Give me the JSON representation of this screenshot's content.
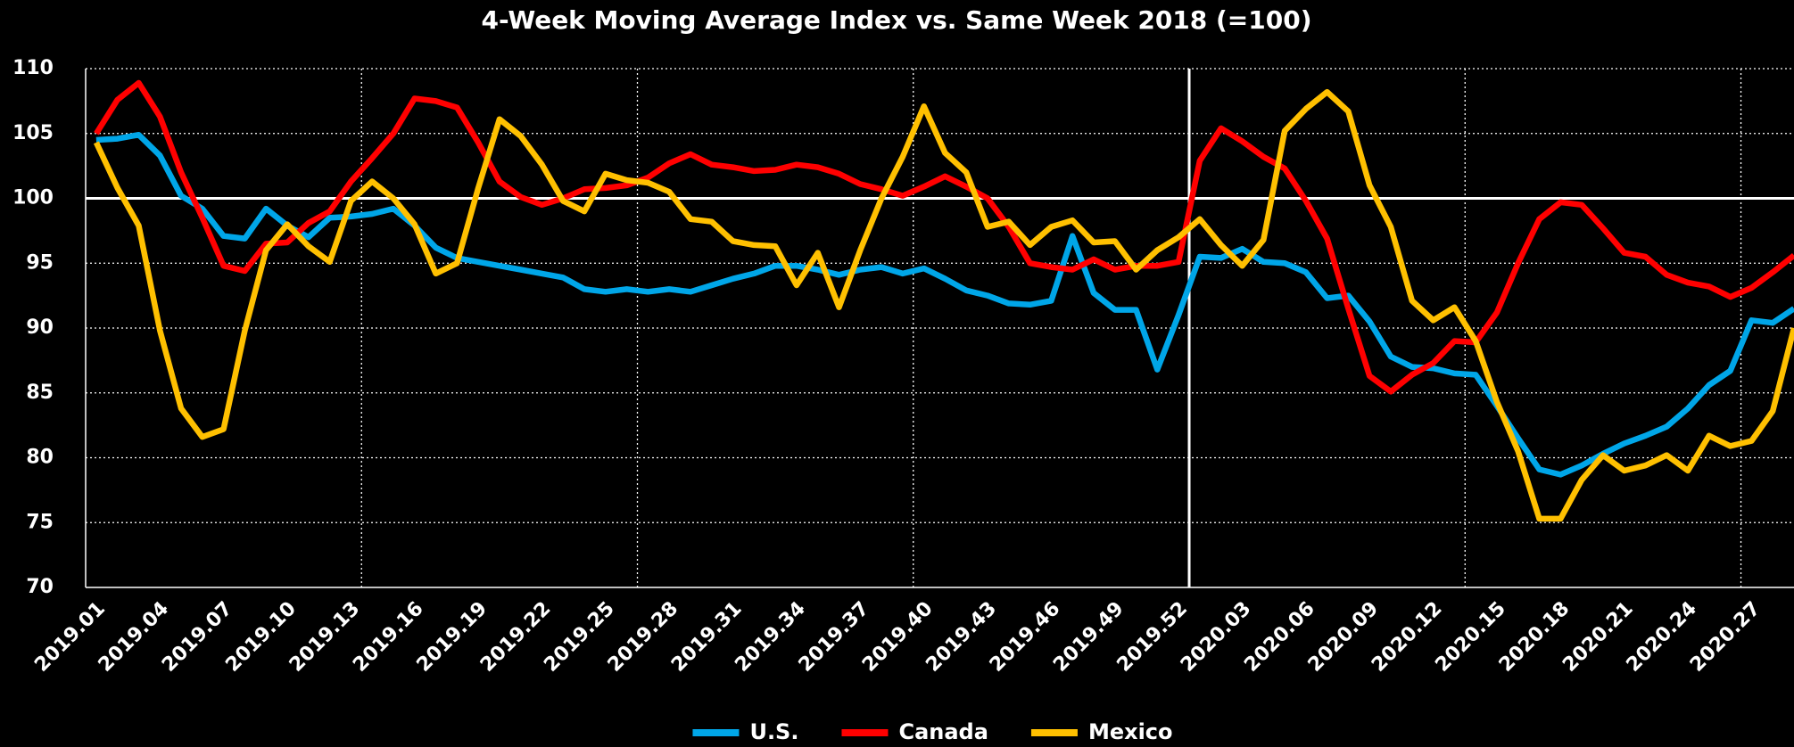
{
  "chart_data": {
    "type": "line",
    "title": "4-Week Moving Average Index vs. Same Week 2018 (=100)",
    "categories": [
      "2019.01",
      null,
      null,
      "2019.04",
      null,
      null,
      "2019.07",
      null,
      null,
      "2019.10",
      null,
      null,
      "2019.13",
      null,
      null,
      "2019.16",
      null,
      null,
      "2019.19",
      null,
      null,
      "2019.22",
      null,
      null,
      "2019.25",
      null,
      null,
      "2019.28",
      null,
      null,
      "2019.31",
      null,
      null,
      "2019.34",
      null,
      null,
      "2019.37",
      null,
      null,
      "2019.40",
      null,
      null,
      "2019.43",
      null,
      null,
      "2019.46",
      null,
      null,
      "2019.49",
      null,
      null,
      "2019.52",
      null,
      null,
      "2020.03",
      null,
      null,
      "2020.06",
      null,
      null,
      "2020.09",
      null,
      null,
      "2020.12",
      null,
      null,
      "2020.15",
      null,
      null,
      "2020.18",
      null,
      null,
      "2020.21",
      null,
      null,
      "2020.24",
      null,
      null,
      "2020.27",
      null,
      null
    ],
    "series": [
      {
        "name": "U.S.",
        "color": "#00a6e8",
        "values": [
          104.5,
          104.6,
          104.9,
          103.3,
          100.2,
          99.2,
          97.1,
          96.9,
          99.2,
          97.9,
          97.0,
          98.5,
          98.6,
          98.8,
          99.2,
          97.9,
          96.2,
          95.4,
          95.1,
          94.8,
          94.5,
          94.2,
          93.9,
          93.0,
          92.8,
          93.0,
          92.8,
          93.0,
          92.8,
          93.3,
          93.8,
          94.2,
          94.8,
          94.8,
          94.5,
          94.1,
          94.5,
          94.7,
          94.2,
          94.6,
          93.8,
          92.9,
          92.5,
          91.9,
          91.8,
          92.1,
          97.1,
          92.7,
          91.4,
          91.4,
          86.8,
          91.0,
          95.5,
          95.4,
          96.1,
          95.1,
          95.0,
          94.3,
          92.3,
          92.5,
          90.5,
          87.8,
          87.0,
          86.9,
          86.5,
          86.4,
          84.0,
          81.5,
          79.1,
          78.7,
          79.4,
          80.3,
          81.1,
          81.7,
          82.4,
          83.8,
          85.6,
          86.7,
          90.6,
          90.4,
          91.5
        ]
      },
      {
        "name": "Canada",
        "color": "#ff0000",
        "values": [
          105.0,
          107.6,
          108.9,
          106.3,
          102.0,
          98.5,
          94.8,
          94.4,
          96.5,
          96.6,
          98.1,
          99.0,
          101.3,
          103.1,
          105.0,
          107.7,
          107.5,
          107.0,
          104.3,
          101.3,
          100.1,
          99.5,
          100.0,
          100.7,
          100.8,
          101.0,
          101.6,
          102.7,
          103.4,
          102.6,
          102.4,
          102.1,
          102.2,
          102.6,
          102.4,
          101.9,
          101.1,
          100.7,
          100.2,
          100.9,
          101.7,
          100.9,
          100.0,
          97.8,
          95.0,
          94.7,
          94.5,
          95.3,
          94.5,
          94.8,
          94.8,
          95.1,
          102.9,
          105.4,
          104.4,
          103.2,
          102.3,
          99.8,
          96.9,
          91.5,
          86.3,
          85.1,
          86.4,
          87.3,
          89.0,
          88.9,
          91.2,
          95.0,
          98.4,
          99.7,
          99.5,
          97.7,
          95.8,
          95.5,
          94.1,
          93.5,
          93.2,
          92.4,
          93.1,
          94.3,
          95.6
        ]
      },
      {
        "name": "Mexico",
        "color": "#ffc000",
        "values": [
          104.3,
          100.8,
          97.9,
          89.8,
          83.8,
          81.6,
          82.2,
          89.8,
          96.0,
          98.0,
          96.3,
          95.1,
          99.8,
          101.3,
          100.0,
          98.0,
          94.2,
          95.0,
          100.8,
          106.1,
          104.8,
          102.6,
          99.8,
          99.0,
          101.9,
          101.4,
          101.2,
          100.5,
          98.4,
          98.2,
          96.7,
          96.4,
          96.3,
          93.3,
          95.8,
          91.6,
          96.0,
          100.0,
          103.2,
          107.1,
          103.5,
          102.0,
          97.8,
          98.2,
          96.4,
          97.8,
          98.3,
          96.6,
          96.7,
          94.5,
          96.0,
          97.0,
          98.4,
          96.4,
          94.8,
          96.8,
          105.2,
          106.9,
          108.2,
          106.7,
          101.0,
          97.8,
          92.1,
          90.6,
          91.6,
          89.0,
          84.3,
          80.5,
          75.3,
          75.3,
          78.3,
          80.2,
          79.0,
          79.4,
          80.2,
          79.0,
          81.7,
          80.9,
          81.3,
          83.6,
          90.0
        ]
      }
    ],
    "ylim": [
      70,
      110
    ],
    "yticks": [
      70,
      75,
      80,
      85,
      90,
      95,
      100,
      105,
      110
    ],
    "grid": true,
    "reference_y": 100,
    "legend": "bottom"
  }
}
